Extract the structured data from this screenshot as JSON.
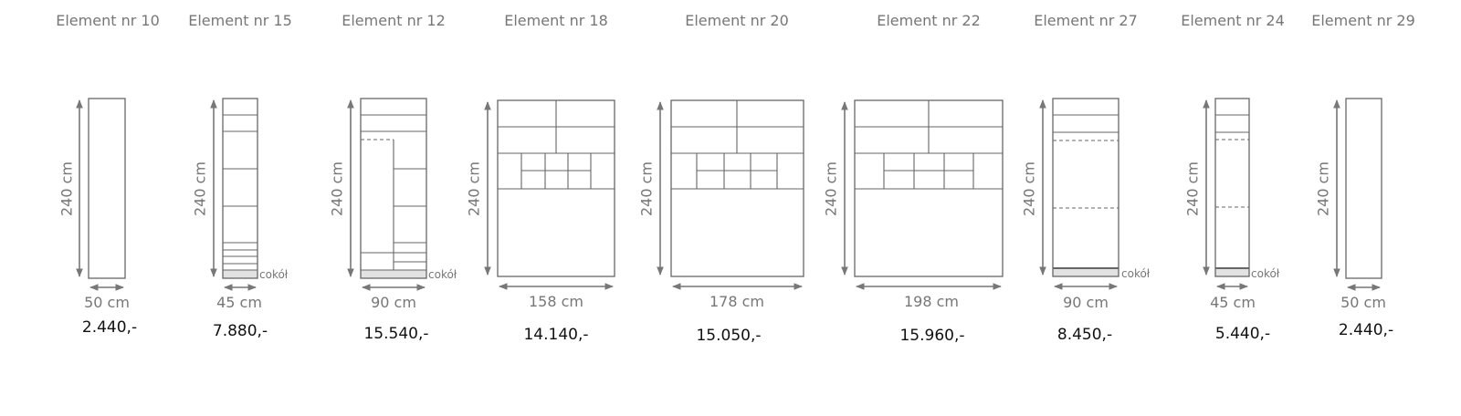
{
  "elements": [
    {
      "title": "Element nr 10",
      "height": "240 cm",
      "width": "50 cm",
      "price": "2.440,-"
    },
    {
      "title": "Element nr 15",
      "height": "240 cm",
      "width": "45 cm",
      "price": "7.880,-",
      "base_label": "cokół"
    },
    {
      "title": "Element nr 12",
      "height": "240 cm",
      "width": "90 cm",
      "price": "15.540,-",
      "base_label": "cokół"
    },
    {
      "title": "Element nr 18",
      "height": "240 cm",
      "width": "158 cm",
      "price": "14.140,-"
    },
    {
      "title": "Element nr 20",
      "height": "240 cm",
      "width": "178 cm",
      "price": "15.050,-"
    },
    {
      "title": "Element nr 22",
      "height": "240 cm",
      "width": "198 cm",
      "price": "15.960,-"
    },
    {
      "title": "Element nr 27",
      "height": "240 cm",
      "width": "90 cm",
      "price": "8.450,-",
      "base_label": "cokół"
    },
    {
      "title": "Element nr 24",
      "height": "240 cm",
      "width": "45 cm",
      "price": "5.440,-",
      "base_label": "cokół"
    },
    {
      "title": "Element nr 29",
      "height": "240 cm",
      "width": "50 cm",
      "price": "2.440,-"
    }
  ]
}
